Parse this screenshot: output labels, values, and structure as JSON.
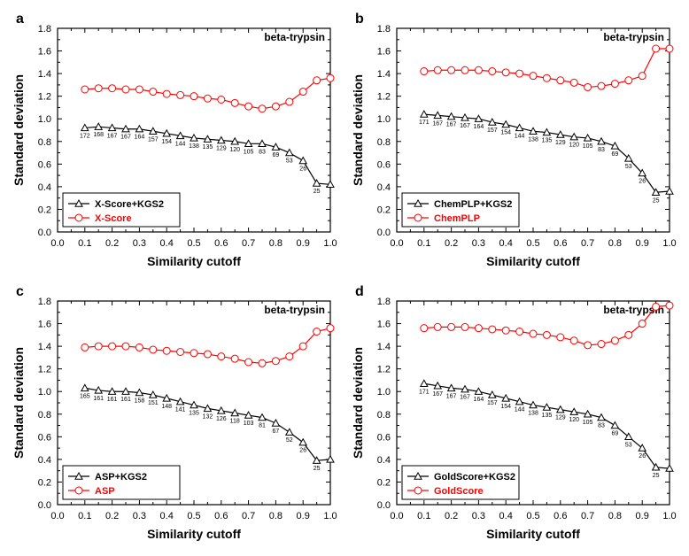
{
  "global": {
    "x_values": [
      0.1,
      0.15,
      0.2,
      0.25,
      0.3,
      0.35,
      0.4,
      0.45,
      0.5,
      0.55,
      0.6,
      0.65,
      0.7,
      0.75,
      0.8,
      0.85,
      0.9,
      0.95,
      1.0
    ],
    "xlim": [
      0.0,
      1.0
    ],
    "ylim": [
      0.0,
      1.8
    ],
    "xtick_step": 0.1,
    "ytick_step": 0.2,
    "xlabel": "Similarity cutoff",
    "ylabel": "Standard deviation",
    "axis_fontsize": 14,
    "tick_fontsize": 11,
    "count_fontsize": 7,
    "annotation": "beta-trypsin",
    "annotation_fontsize": 12,
    "colors": {
      "series1": "#000000",
      "series2": "#ff0000",
      "frame": "#000000",
      "tick": "#000000",
      "text": "#000000",
      "background": "#ffffff",
      "legend_border": "#000000"
    },
    "line_width": 1.2,
    "marker_size": 4,
    "marker_stroke": 1.0
  },
  "panels": [
    {
      "letter": "a",
      "legend": [
        "X-Score+KGS2",
        "X-Score"
      ],
      "series1": [
        0.92,
        0.93,
        0.92,
        0.91,
        0.91,
        0.89,
        0.87,
        0.85,
        0.83,
        0.82,
        0.81,
        0.8,
        0.78,
        0.78,
        0.75,
        0.7,
        0.63,
        0.43,
        0.42
      ],
      "series2": [
        1.26,
        1.27,
        1.27,
        1.26,
        1.26,
        1.24,
        1.22,
        1.21,
        1.2,
        1.18,
        1.17,
        1.14,
        1.11,
        1.09,
        1.11,
        1.15,
        1.24,
        1.34,
        1.36
      ],
      "counts": [
        172,
        168,
        167,
        167,
        164,
        157,
        154,
        144,
        138,
        135,
        129,
        120,
        105,
        83,
        69,
        53,
        26,
        25,
        null
      ]
    },
    {
      "letter": "b",
      "legend": [
        "ChemPLP+KGS2",
        "ChemPLP"
      ],
      "series1": [
        1.04,
        1.03,
        1.02,
        1.01,
        1.0,
        0.97,
        0.95,
        0.92,
        0.89,
        0.88,
        0.86,
        0.84,
        0.83,
        0.8,
        0.76,
        0.65,
        0.52,
        0.35,
        0.36
      ],
      "series2": [
        1.42,
        1.43,
        1.43,
        1.43,
        1.43,
        1.42,
        1.41,
        1.4,
        1.38,
        1.36,
        1.34,
        1.32,
        1.28,
        1.29,
        1.31,
        1.34,
        1.38,
        1.62,
        1.62
      ],
      "counts": [
        171,
        167,
        167,
        167,
        164,
        157,
        154,
        144,
        138,
        135,
        129,
        120,
        105,
        83,
        69,
        53,
        26,
        25,
        null
      ]
    },
    {
      "letter": "c",
      "legend": [
        "ASP+KGS2",
        "ASP"
      ],
      "series1": [
        1.03,
        1.01,
        1.0,
        1.0,
        0.99,
        0.97,
        0.94,
        0.91,
        0.88,
        0.85,
        0.83,
        0.81,
        0.79,
        0.77,
        0.72,
        0.64,
        0.55,
        0.39,
        0.4
      ],
      "series2": [
        1.39,
        1.4,
        1.4,
        1.4,
        1.39,
        1.37,
        1.36,
        1.35,
        1.34,
        1.33,
        1.31,
        1.29,
        1.26,
        1.25,
        1.27,
        1.31,
        1.4,
        1.53,
        1.56
      ],
      "counts": [
        165,
        161,
        161,
        161,
        158,
        151,
        148,
        141,
        135,
        132,
        126,
        118,
        103,
        81,
        67,
        52,
        26,
        25,
        null
      ]
    },
    {
      "letter": "d",
      "legend": [
        "GoldScore+KGS2",
        "GoldScore"
      ],
      "series1": [
        1.07,
        1.05,
        1.03,
        1.02,
        1.0,
        0.97,
        0.94,
        0.91,
        0.88,
        0.86,
        0.84,
        0.82,
        0.8,
        0.77,
        0.7,
        0.6,
        0.5,
        0.33,
        0.32
      ],
      "series2": [
        1.56,
        1.57,
        1.57,
        1.57,
        1.56,
        1.55,
        1.54,
        1.53,
        1.51,
        1.5,
        1.48,
        1.45,
        1.41,
        1.42,
        1.45,
        1.5,
        1.6,
        1.75,
        1.76
      ],
      "counts": [
        171,
        167,
        167,
        167,
        164,
        157,
        154,
        144,
        138,
        135,
        129,
        120,
        105,
        83,
        69,
        53,
        26,
        25,
        null
      ]
    }
  ]
}
